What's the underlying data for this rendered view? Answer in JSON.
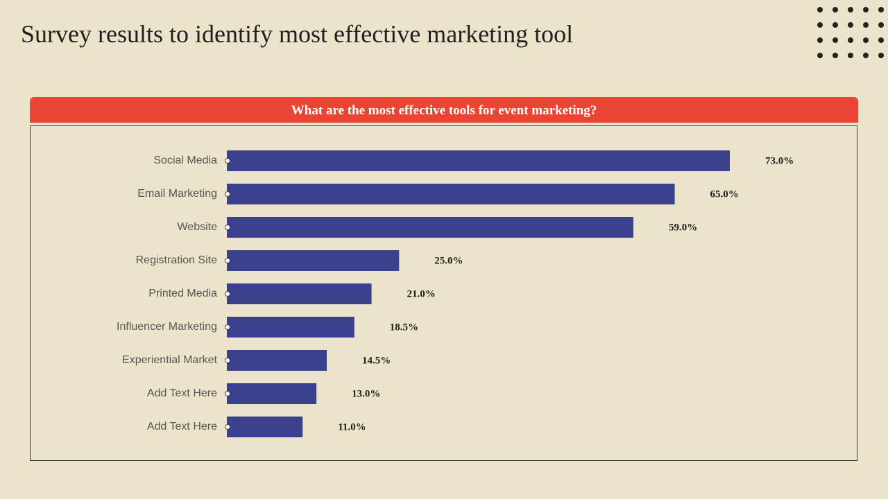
{
  "slide": {
    "title": "Survey results to identify most effective marketing tool"
  },
  "colors": {
    "background": "#ebe4cb",
    "header_red": "#e94434",
    "bar_blue": "#3b418c",
    "dots": "#222222"
  },
  "decoration": {
    "icon": "dot-grid-icon"
  },
  "chart_data": {
    "type": "bar",
    "orientation": "horizontal",
    "title": "What are the most effective tools for event marketing?",
    "categories": [
      "Social Media",
      "Email Marketing",
      "Website",
      "Registration Site",
      "Printed Media",
      "Influencer Marketing",
      "Experiential Market",
      "Add Text Here",
      "Add Text Here"
    ],
    "values": [
      73.0,
      65.0,
      59.0,
      25.0,
      21.0,
      18.5,
      14.5,
      13.0,
      11.0
    ],
    "value_labels": [
      "73.0%",
      "65.0%",
      "59.0%",
      "25.0%",
      "21.0%",
      "18.5%",
      "14.5%",
      "13.0%",
      "11.0%"
    ],
    "unit": "%",
    "xlabel": "",
    "ylabel": "",
    "xlim": [
      0,
      100
    ],
    "grid": false,
    "legend": "none"
  }
}
